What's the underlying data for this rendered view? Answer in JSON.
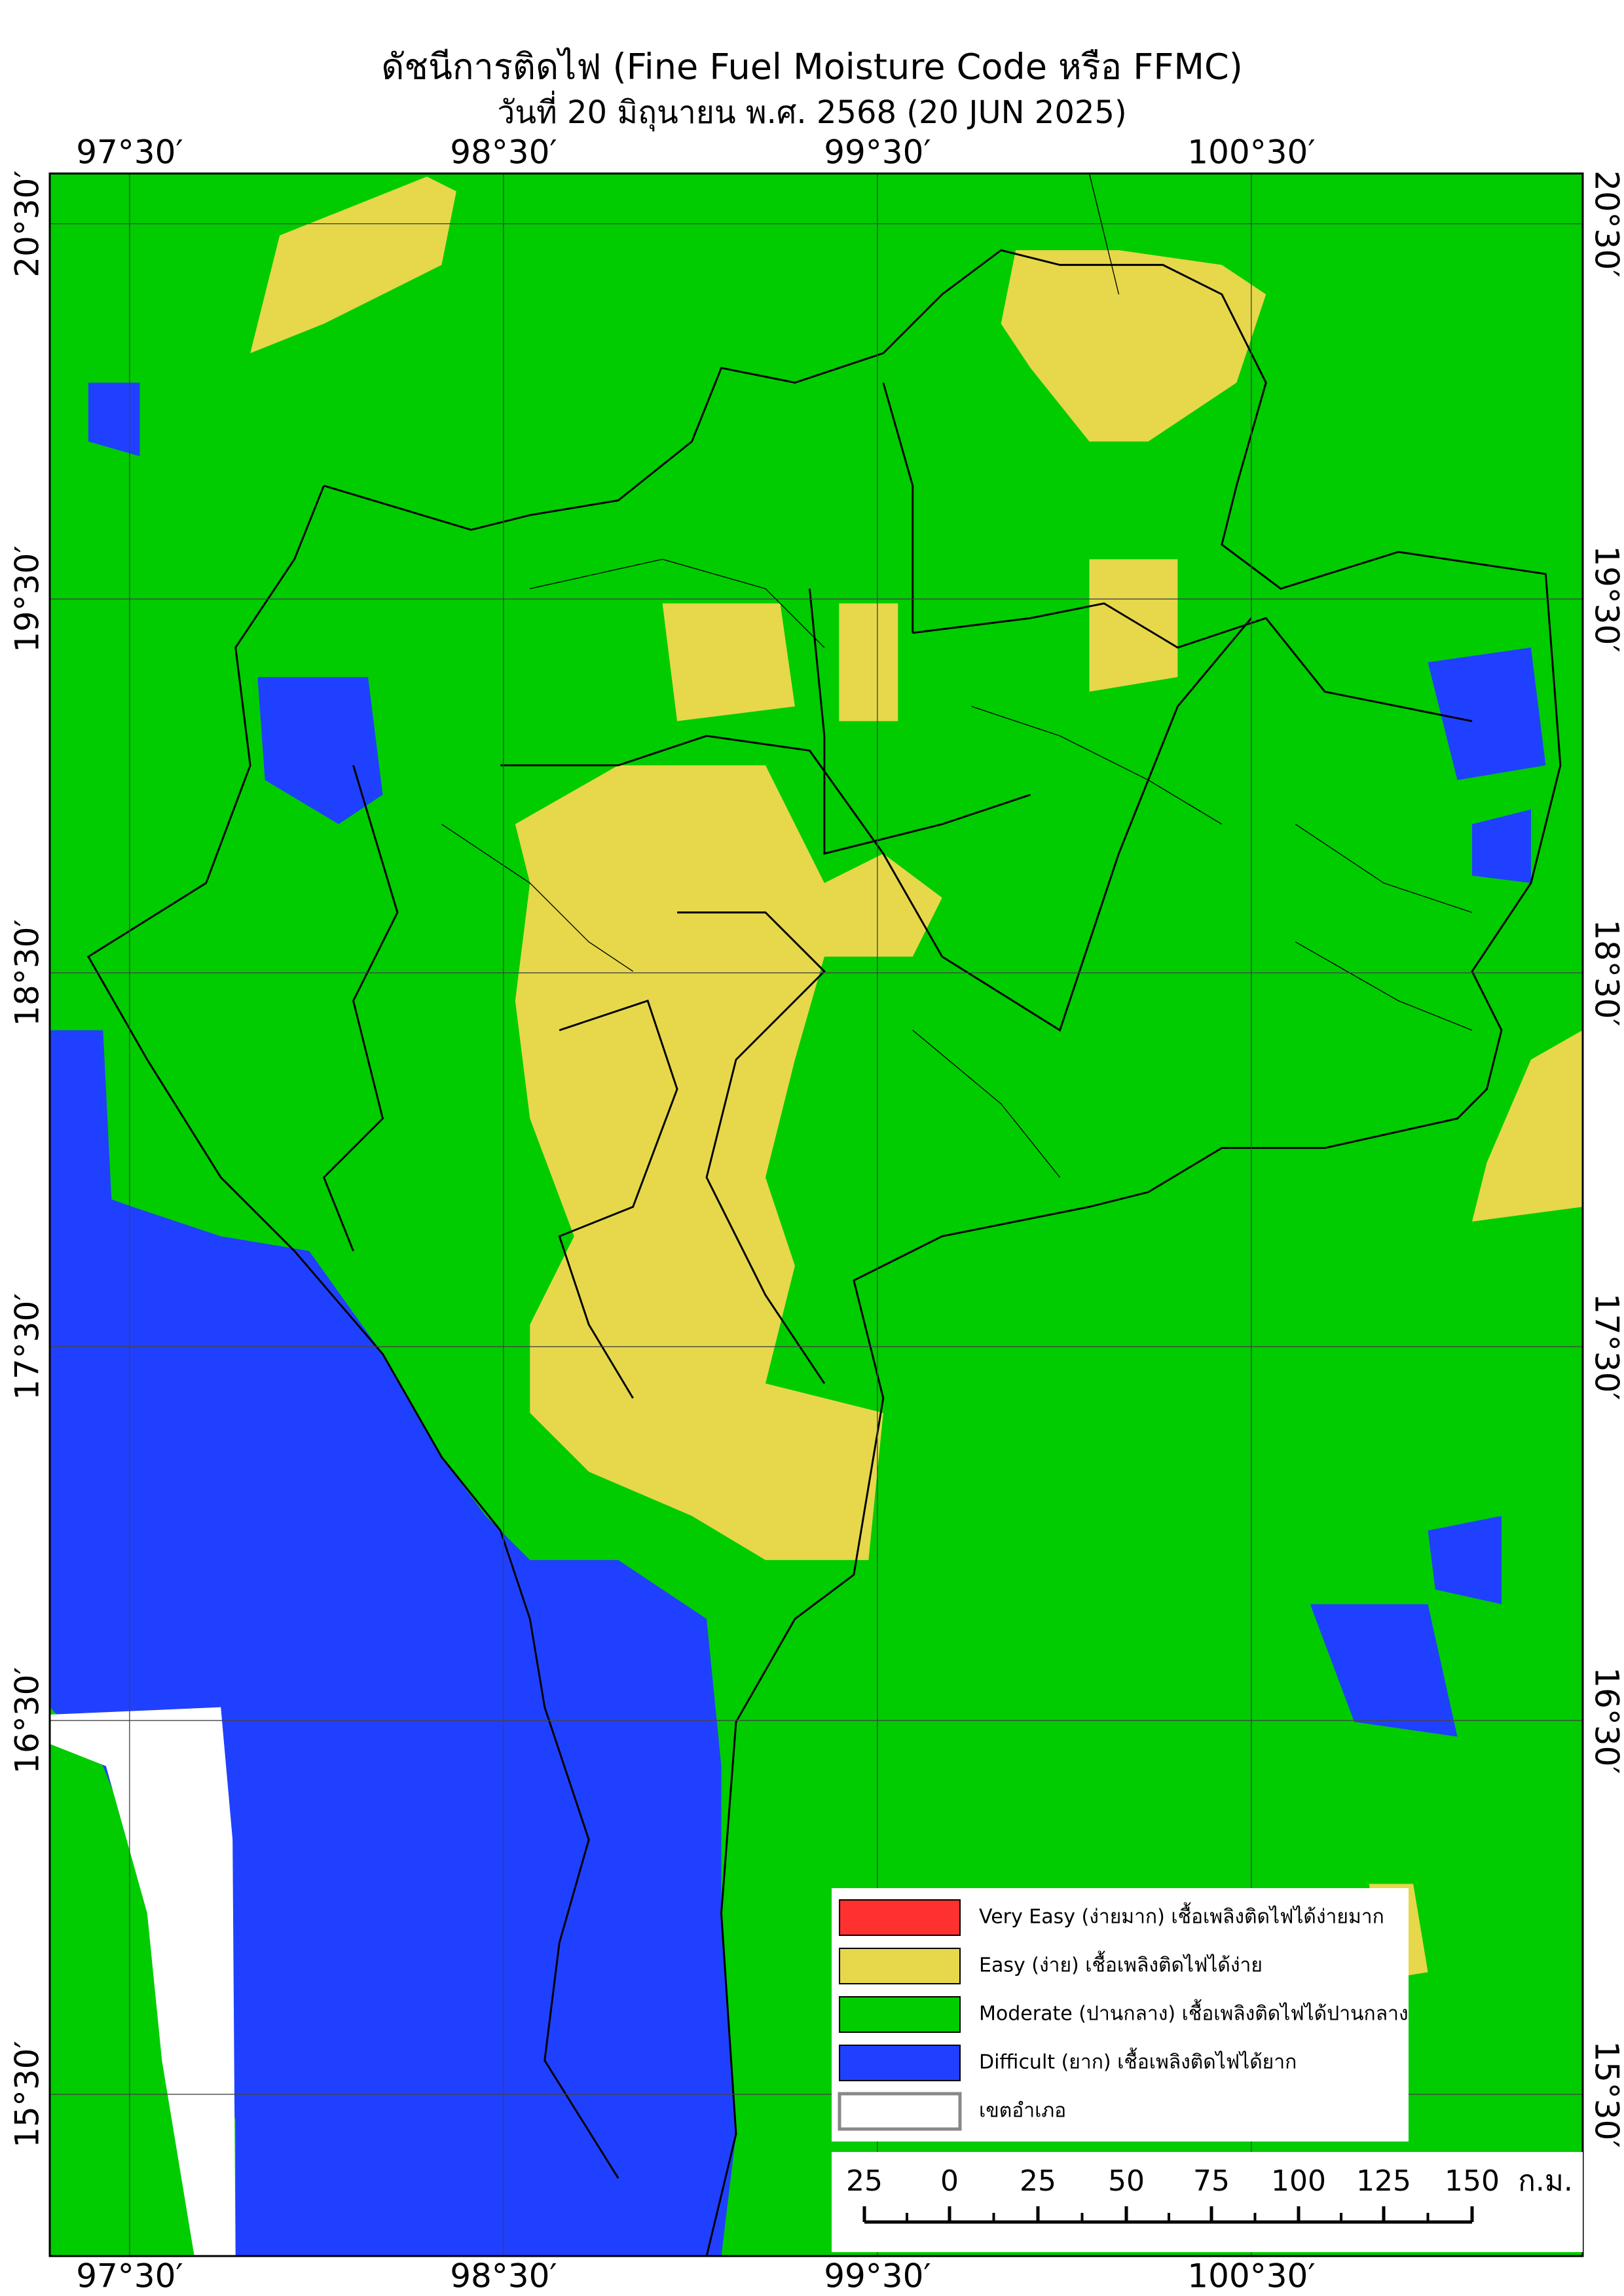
{
  "title": "ดัชนีการติดไฟ (Fine Fuel Moisture Code หรือ FFMC)",
  "subtitle": "วันที่ 20 มิถุนายน พ.ศ. 2568 (20 JUN 2025)",
  "longitude_labels": [
    "97°30′",
    "98°30′",
    "99°30′",
    "100°30′"
  ],
  "latitude_labels": [
    "20°30′",
    "19°30′",
    "18°30′",
    "17°30′",
    "16°30′",
    "15°30′"
  ],
  "legend": [
    {
      "label": "Very Easy (ง่ายมาก) เชื้อเพลิงติดไฟได้ง่ายมาก",
      "color": "#ff3030"
    },
    {
      "label": "Easy (ง่าย) เชื้อเพลิงติดไฟได้ง่าย",
      "color": "#e6d84a"
    },
    {
      "label": "Moderate (ปานกลาง) เชื้อเพลิงติดไฟได้ปานกลาง",
      "color": "#00cc00"
    },
    {
      "label": "Difficult (ยาก) เชื้อเพลิงติดไฟได้ยาก",
      "color": "#2040ff"
    },
    {
      "label": "เขตอำเภอ",
      "color": "#ffffff"
    }
  ],
  "scale_bar": {
    "labels": [
      "25",
      "0",
      "25",
      "50",
      "75",
      "100",
      "125",
      "150"
    ],
    "unit": "ก.ม."
  }
}
